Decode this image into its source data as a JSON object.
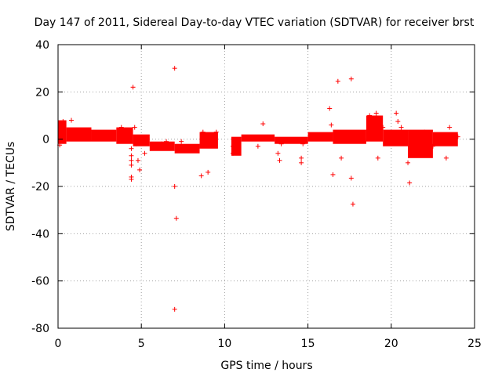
{
  "chart_data": {
    "type": "scatter",
    "title": "Day 147 of 2011, Sidereal Day-to-day VTEC variation (SDTVAR) for receiver brst",
    "xlabel": "GPS time / hours",
    "ylabel": "SDTVAR / TECUs",
    "xlim": [
      0,
      25
    ],
    "ylim": [
      -80,
      40
    ],
    "xticks": [
      "0",
      "5",
      "10",
      "15",
      "20",
      "25"
    ],
    "yticks": [
      "-80",
      "-60",
      "-40",
      "-20",
      "0",
      "20",
      "40"
    ],
    "xtick_values": [
      0,
      5,
      10,
      15,
      20,
      25
    ],
    "ytick_values": [
      -80,
      -60,
      -40,
      -20,
      0,
      20,
      40
    ],
    "grid": true,
    "marker": "+",
    "color": "#ff0000",
    "series": [
      {
        "name": "SDTVAR",
        "dense_bands": [
          {
            "x": [
              0.0,
              0.5
            ],
            "y": [
              -2,
              8
            ]
          },
          {
            "x": [
              0.5,
              2.0
            ],
            "y": [
              -1,
              5
            ]
          },
          {
            "x": [
              2.0,
              3.5
            ],
            "y": [
              -1,
              4
            ]
          },
          {
            "x": [
              3.5,
              4.5
            ],
            "y": [
              -2,
              5
            ]
          },
          {
            "x": [
              4.5,
              5.5
            ],
            "y": [
              -3,
              2
            ]
          },
          {
            "x": [
              5.5,
              7.0
            ],
            "y": [
              -5,
              -1
            ]
          },
          {
            "x": [
              7.0,
              8.5
            ],
            "y": [
              -6,
              -2
            ]
          },
          {
            "x": [
              8.5,
              9.6
            ],
            "y": [
              -4,
              3
            ]
          },
          {
            "x": [
              10.4,
              11.0
            ],
            "y": [
              -7,
              1
            ]
          },
          {
            "x": [
              11.0,
              13.0
            ],
            "y": [
              -1,
              2
            ]
          },
          {
            "x": [
              13.0,
              15.0
            ],
            "y": [
              -2,
              1
            ]
          },
          {
            "x": [
              15.0,
              16.5
            ],
            "y": [
              -1,
              3
            ]
          },
          {
            "x": [
              16.5,
              18.5
            ],
            "y": [
              -2,
              4
            ]
          },
          {
            "x": [
              18.5,
              19.5
            ],
            "y": [
              -1,
              10
            ]
          },
          {
            "x": [
              19.5,
              21.0
            ],
            "y": [
              -3,
              4
            ]
          },
          {
            "x": [
              21.0,
              22.5
            ],
            "y": [
              -8,
              4
            ]
          },
          {
            "x": [
              22.5,
              24.0
            ],
            "y": [
              -3,
              3
            ]
          }
        ],
        "points": [
          [
            0.1,
            -2.5
          ],
          [
            0.3,
            7.5
          ],
          [
            0.8,
            8
          ],
          [
            2.8,
            1.5
          ],
          [
            3.8,
            5
          ],
          [
            4.4,
            -4
          ],
          [
            4.4,
            -7
          ],
          [
            4.4,
            -9
          ],
          [
            4.4,
            -11
          ],
          [
            4.4,
            -16
          ],
          [
            4.4,
            -17
          ],
          [
            4.5,
            22
          ],
          [
            4.6,
            5
          ],
          [
            4.7,
            -2
          ],
          [
            4.8,
            -9
          ],
          [
            4.9,
            -13
          ],
          [
            5.2,
            -6
          ],
          [
            6.2,
            -2
          ],
          [
            6.5,
            -1
          ],
          [
            7.0,
            30
          ],
          [
            7.0,
            -20
          ],
          [
            7.1,
            -33.5
          ],
          [
            7.0,
            -72
          ],
          [
            7.4,
            -1
          ],
          [
            8.6,
            -15.5
          ],
          [
            9.0,
            -14
          ],
          [
            8.7,
            3
          ],
          [
            9.5,
            3
          ],
          [
            10.5,
            -3
          ],
          [
            10.5,
            -6
          ],
          [
            11.6,
            0.5
          ],
          [
            12.3,
            6.5
          ],
          [
            12.0,
            -3
          ],
          [
            13.2,
            -6
          ],
          [
            13.3,
            -9
          ],
          [
            13.4,
            -2
          ],
          [
            14.6,
            -8
          ],
          [
            14.6,
            -10
          ],
          [
            14.7,
            -2
          ],
          [
            15.2,
            1
          ],
          [
            16.3,
            13
          ],
          [
            16.4,
            6
          ],
          [
            16.5,
            -15
          ],
          [
            16.8,
            24.5
          ],
          [
            17.0,
            -8
          ],
          [
            17.3,
            2
          ],
          [
            17.6,
            25.5
          ],
          [
            17.6,
            -16.5
          ],
          [
            17.7,
            -27.5
          ],
          [
            17.8,
            1
          ],
          [
            18.7,
            10
          ],
          [
            19.1,
            11
          ],
          [
            19.2,
            -8
          ],
          [
            19.5,
            5
          ],
          [
            20.3,
            11
          ],
          [
            20.4,
            7.5
          ],
          [
            20.6,
            5
          ],
          [
            21.0,
            -10
          ],
          [
            21.1,
            -18.5
          ],
          [
            21.3,
            -5
          ],
          [
            22.0,
            3
          ],
          [
            22.5,
            -3
          ],
          [
            23.3,
            -8
          ],
          [
            23.5,
            5
          ],
          [
            24.0,
            1
          ]
        ]
      }
    ]
  }
}
